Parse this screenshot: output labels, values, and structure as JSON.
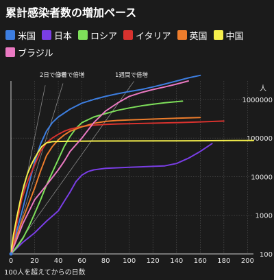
{
  "title": "累計感染者数の増加ペース",
  "legend": [
    {
      "label": "米国",
      "color": "#3d7ee0"
    },
    {
      "label": "日本",
      "color": "#7a3ee6"
    },
    {
      "label": "ロシア",
      "color": "#7ee05a"
    },
    {
      "label": "イタリア",
      "color": "#d8322e"
    },
    {
      "label": "英国",
      "color": "#ee7d2c"
    },
    {
      "label": "中国",
      "color": "#f5ef4c"
    },
    {
      "label": "ブラジル",
      "color": "#ea79c2"
    }
  ],
  "chart_data": {
    "type": "line",
    "title": "累計感染者数の増加ペース",
    "xlabel": "100人を超えてからの日数",
    "ylabel": "人",
    "xlim": [
      0,
      205
    ],
    "ylim": [
      100,
      3000000
    ],
    "yscale": "log",
    "x_ticks": [
      "0",
      "20",
      "40",
      "60",
      "80",
      "100",
      "120",
      "140",
      "160",
      "180",
      "200"
    ],
    "x_tick_values": [
      0,
      20,
      40,
      60,
      80,
      100,
      120,
      140,
      160,
      180,
      200
    ],
    "y_ticks": [
      "100",
      "1000",
      "10000",
      "100000",
      "1000000"
    ],
    "y_tick_values": [
      100,
      1000,
      10000,
      100000,
      1000000
    ],
    "grid": true,
    "legend_position": "top",
    "reference_lines": [
      {
        "label": "2日で倍増",
        "doubling_days": 2
      },
      {
        "label": "3日で倍増",
        "doubling_days": 3
      },
      {
        "label": "1週間で倍増",
        "doubling_days": 7
      }
    ],
    "series": [
      {
        "name": "米国",
        "color": "#3d7ee0",
        "x": [
          0,
          5,
          10,
          15,
          20,
          25,
          30,
          35,
          40,
          50,
          60,
          70,
          80,
          90,
          100,
          110,
          120,
          130,
          140,
          150,
          160
        ],
        "y": [
          100,
          400,
          1500,
          6000,
          24000,
          70000,
          150000,
          250000,
          350000,
          560000,
          800000,
          1000000,
          1200000,
          1400000,
          1600000,
          1800000,
          2100000,
          2500000,
          3000000,
          3600000,
          4200000
        ]
      },
      {
        "name": "日本",
        "color": "#7a3ee6",
        "x": [
          0,
          10,
          20,
          30,
          40,
          45,
          50,
          55,
          60,
          65,
          70,
          80,
          90,
          100,
          110,
          120,
          130,
          140,
          150,
          160,
          170
        ],
        "y": [
          100,
          200,
          350,
          700,
          1300,
          2300,
          4000,
          7500,
          11000,
          13500,
          15000,
          16500,
          17000,
          17500,
          18000,
          18500,
          19000,
          22000,
          30000,
          45000,
          72000
        ]
      },
      {
        "name": "ロシア",
        "color": "#7ee05a",
        "x": [
          0,
          5,
          10,
          15,
          20,
          25,
          30,
          35,
          40,
          45,
          50,
          55,
          60,
          70,
          80,
          90,
          100,
          110,
          120,
          130,
          145
        ],
        "y": [
          100,
          150,
          250,
          500,
          1100,
          2500,
          6000,
          13000,
          28000,
          60000,
          110000,
          180000,
          250000,
          350000,
          430000,
          520000,
          600000,
          680000,
          750000,
          820000,
          900000
        ]
      },
      {
        "name": "イタリア",
        "color": "#d8322e",
        "x": [
          0,
          3,
          6,
          9,
          12,
          15,
          20,
          25,
          30,
          35,
          40,
          45,
          50,
          60,
          70,
          80,
          90,
          100,
          120,
          140,
          160,
          180
        ],
        "y": [
          100,
          300,
          900,
          2500,
          5000,
          9000,
          20000,
          45000,
          75000,
          100000,
          125000,
          150000,
          170000,
          200000,
          215000,
          225000,
          232000,
          236000,
          242000,
          250000,
          262000,
          275000
        ]
      },
      {
        "name": "英国",
        "color": "#ee7d2c",
        "x": [
          0,
          5,
          10,
          15,
          20,
          25,
          30,
          35,
          40,
          45,
          50,
          60,
          70,
          80,
          90,
          100,
          120,
          140,
          160
        ],
        "y": [
          100,
          300,
          800,
          2000,
          5000,
          14000,
          35000,
          60000,
          90000,
          120000,
          150000,
          195000,
          240000,
          270000,
          285000,
          295000,
          310000,
          325000,
          340000
        ]
      },
      {
        "name": "中国",
        "color": "#f5ef4c",
        "x": [
          0,
          2,
          5,
          8,
          11,
          14,
          17,
          20,
          23,
          26,
          30,
          35,
          40,
          50,
          70,
          100,
          130,
          160,
          190,
          205
        ],
        "y": [
          100,
          300,
          900,
          2500,
          6000,
          12000,
          20000,
          30000,
          43000,
          60000,
          75000,
          80500,
          81500,
          82500,
          83500,
          84000,
          84500,
          85000,
          86000,
          86500
        ]
      },
      {
        "name": "ブラジル",
        "color": "#ea79c2",
        "x": [
          0,
          10,
          20,
          30,
          40,
          45,
          50,
          60,
          70,
          80,
          90,
          100,
          110,
          120,
          130,
          140,
          150
        ],
        "y": [
          100,
          600,
          2500,
          6000,
          15000,
          25000,
          45000,
          100000,
          250000,
          500000,
          800000,
          1200000,
          1500000,
          1800000,
          2100000,
          2500000,
          3000000
        ]
      }
    ]
  }
}
